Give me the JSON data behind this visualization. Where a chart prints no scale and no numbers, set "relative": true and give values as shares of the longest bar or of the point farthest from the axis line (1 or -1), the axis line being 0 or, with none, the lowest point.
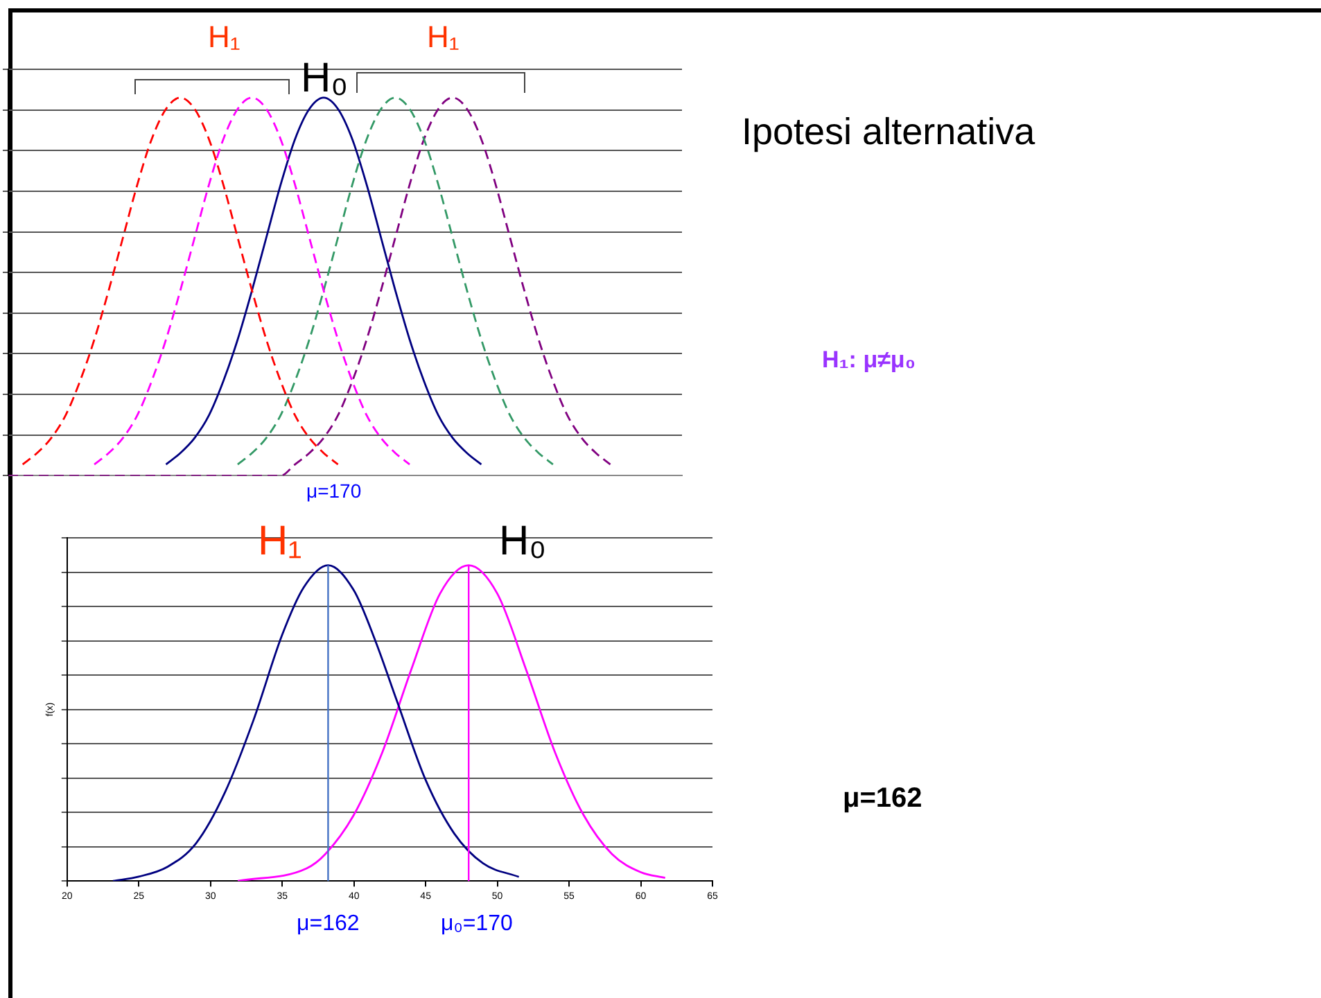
{
  "chart_data": [
    {
      "type": "line",
      "relative": true,
      "grid": "y",
      "legend": false,
      "marker": "none",
      "categories": [
        null,
        null,
        null,
        null,
        null,
        null,
        null,
        null,
        null,
        null,
        null,
        null,
        null,
        null,
        null,
        null,
        null,
        null,
        null,
        null,
        null,
        null,
        null,
        null,
        null,
        null,
        null,
        null,
        null,
        null,
        null,
        null,
        null,
        null,
        null,
        null,
        null,
        null,
        null,
        null,
        null,
        null,
        null,
        null,
        null,
        null,
        null,
        null
      ],
      "series": [
        {
          "color": "#ff0000",
          "line_style": "dashed",
          "values": [
            null,
            0.03,
            0.06,
            0.1,
            0.16,
            0.25,
            0.36,
            0.49,
            0.63,
            0.77,
            0.89,
            0.97,
            1,
            0.97,
            0.89,
            0.77,
            0.63,
            0.49,
            0.36,
            0.25,
            0.16,
            0.1,
            0.06,
            0.03,
            null,
            null,
            null,
            null,
            null,
            null,
            null,
            null,
            null,
            null,
            null,
            null,
            null,
            null,
            null,
            null,
            null,
            null,
            null,
            null,
            null,
            null,
            null,
            null
          ]
        },
        {
          "color": "#ff00ff",
          "line_style": "dashed",
          "values": [
            null,
            null,
            null,
            null,
            null,
            null,
            0.03,
            0.06,
            0.1,
            0.16,
            0.25,
            0.36,
            0.49,
            0.63,
            0.77,
            0.89,
            0.97,
            1,
            0.97,
            0.89,
            0.77,
            0.63,
            0.49,
            0.36,
            0.25,
            0.16,
            0.1,
            0.06,
            0.03,
            null,
            null,
            null,
            null,
            null,
            null,
            null,
            null,
            null,
            null,
            null,
            null,
            null,
            null,
            null,
            null,
            null,
            null,
            null
          ]
        },
        {
          "color": "#000080",
          "line_style": "solid",
          "values": [
            null,
            null,
            null,
            null,
            null,
            null,
            null,
            null,
            null,
            null,
            null,
            0.03,
            0.06,
            0.1,
            0.16,
            0.25,
            0.36,
            0.49,
            0.63,
            0.77,
            0.89,
            0.97,
            1,
            0.97,
            0.89,
            0.77,
            0.63,
            0.49,
            0.36,
            0.25,
            0.16,
            0.1,
            0.06,
            0.03,
            null,
            null,
            null,
            null,
            null,
            null,
            null,
            null,
            null,
            null,
            null,
            null,
            null,
            null
          ]
        },
        {
          "color": "#339966",
          "line_style": "dashed",
          "values": [
            null,
            null,
            null,
            null,
            null,
            null,
            null,
            null,
            null,
            null,
            null,
            null,
            null,
            null,
            null,
            null,
            0.03,
            0.06,
            0.1,
            0.16,
            0.25,
            0.36,
            0.49,
            0.63,
            0.77,
            0.89,
            0.97,
            1,
            0.97,
            0.89,
            0.77,
            0.63,
            0.49,
            0.36,
            0.25,
            0.16,
            0.1,
            0.06,
            0.03,
            null,
            null,
            null,
            null,
            null,
            null,
            null,
            null,
            null
          ]
        },
        {
          "color": "#800080",
          "line_style": "dashed",
          "values": [
            0,
            0,
            0,
            0,
            0,
            0,
            0,
            0,
            0,
            0,
            0,
            0,
            0,
            0,
            0,
            0,
            0,
            0,
            0,
            0,
            0.03,
            0.06,
            0.1,
            0.16,
            0.25,
            0.36,
            0.49,
            0.63,
            0.77,
            0.89,
            0.97,
            1,
            0.97,
            0.89,
            0.77,
            0.63,
            0.49,
            0.36,
            0.25,
            0.16,
            0.1,
            0.06,
            0.03,
            null,
            null,
            null,
            null,
            null
          ]
        }
      ],
      "annotations": [
        "H₁",
        "H₁",
        "H₀",
        "μ=170"
      ]
    },
    {
      "type": "line",
      "relative": true,
      "grid": "y",
      "legend": false,
      "marker": "none",
      "ylabel": "f(x)",
      "xlim": [
        20,
        65
      ],
      "xticks": [
        20,
        25,
        30,
        35,
        40,
        45,
        50,
        55,
        60,
        65
      ],
      "series": [
        {
          "color": "#000080",
          "line_style": "solid",
          "x": [
            23.2,
            25,
            27,
            29,
            31,
            33,
            35,
            36.5,
            38.2,
            40,
            41.5,
            43,
            45,
            47,
            49,
            51.5
          ],
          "values": [
            0,
            0.014,
            0.045,
            0.12,
            0.28,
            0.51,
            0.78,
            0.93,
            1,
            0.92,
            0.76,
            0.57,
            0.32,
            0.15,
            0.056,
            0.013
          ]
        },
        {
          "color": "#ff00ff",
          "line_style": "solid",
          "x": [
            31.9,
            36.7,
            38,
            40,
            42,
            44,
            46,
            48,
            50,
            52,
            54,
            56,
            58,
            60,
            61.7
          ],
          "values": [
            0,
            0.04,
            0.085,
            0.21,
            0.41,
            0.67,
            0.91,
            1,
            0.91,
            0.67,
            0.41,
            0.21,
            0.085,
            0.028,
            0.01
          ]
        }
      ],
      "ref_lines": [
        {
          "axis": "x",
          "value": 38.2,
          "color": "#4472c4"
        },
        {
          "axis": "x",
          "value": 48,
          "color": "#ff00ff"
        }
      ],
      "annotations": [
        "H₁",
        "H₀",
        "μ=162",
        "μ₀=170"
      ]
    },
    {
      "type": "other",
      "title": "Ipotesi alternativa",
      "annotations": [
        "H₁: μ≠μ₀",
        "μ=162"
      ]
    }
  ]
}
